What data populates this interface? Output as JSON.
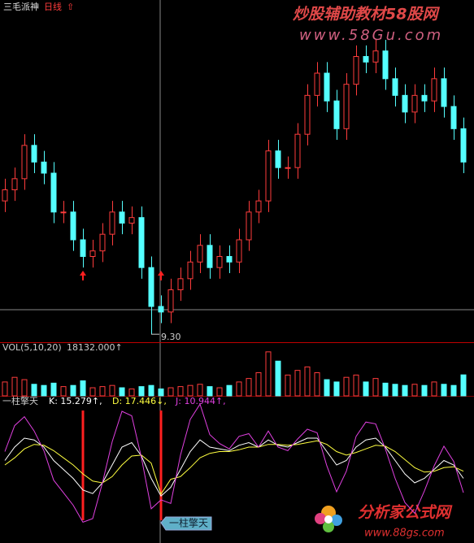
{
  "header": {
    "title": "三毛派神",
    "period": "日线",
    "arrow": "⇧"
  },
  "watermark": {
    "top": "炒股辅助教材58股网",
    "top_url": "www.58Gu.com",
    "bottom": "分析家公式网",
    "bottom_url": "www.88gs.com"
  },
  "chart_data": [
    {
      "type": "candlestick",
      "up_color": "#ff3c3c",
      "down_color": "#54ffff",
      "ylim": [
        9.2,
        15.2
      ],
      "low_label": "9.30",
      "low_index": 15,
      "open": [
        11.7,
        11.9,
        12.1,
        12.7,
        12.4,
        12.2,
        11.5,
        11.5,
        11.0,
        10.7,
        10.8,
        11.1,
        11.5,
        11.3,
        11.4,
        10.5,
        9.8,
        9.7,
        10.1,
        10.3,
        10.6,
        10.9,
        10.5,
        10.7,
        10.6,
        11.0,
        11.5,
        11.7,
        12.6,
        12.3,
        12.3,
        12.9,
        13.6,
        14.0,
        13.5,
        13.0,
        13.8,
        14.3,
        14.2,
        14.4,
        13.9,
        13.6,
        13.3,
        13.6,
        13.5,
        13.9,
        13.4,
        13.0
      ],
      "high": [
        12.1,
        12.3,
        12.9,
        12.9,
        12.6,
        12.4,
        11.7,
        11.7,
        11.2,
        11.0,
        11.3,
        11.7,
        11.7,
        11.6,
        11.6,
        10.7,
        10.0,
        10.3,
        10.5,
        10.8,
        11.1,
        11.1,
        10.9,
        10.9,
        11.2,
        11.7,
        11.9,
        12.8,
        12.8,
        12.5,
        13.1,
        13.8,
        14.2,
        14.2,
        13.7,
        14.0,
        14.5,
        14.5,
        14.6,
        14.6,
        14.1,
        13.8,
        13.8,
        13.8,
        14.1,
        14.1,
        13.6,
        13.2
      ],
      "low": [
        11.5,
        11.7,
        11.9,
        12.2,
        12.0,
        11.3,
        11.3,
        10.8,
        10.5,
        10.5,
        10.6,
        10.9,
        11.1,
        11.1,
        10.3,
        9.3,
        9.5,
        9.5,
        9.9,
        10.1,
        10.4,
        10.3,
        10.3,
        10.4,
        10.4,
        10.8,
        11.3,
        11.5,
        12.1,
        12.1,
        12.1,
        12.7,
        13.4,
        13.3,
        12.8,
        12.8,
        13.6,
        14.0,
        14.0,
        13.7,
        13.4,
        13.1,
        13.1,
        13.3,
        13.3,
        13.2,
        12.8,
        12.2
      ],
      "close": [
        11.9,
        12.1,
        12.7,
        12.4,
        12.2,
        11.5,
        11.5,
        11.0,
        10.7,
        10.8,
        11.1,
        11.5,
        11.3,
        11.4,
        10.5,
        9.8,
        9.7,
        10.1,
        10.3,
        10.6,
        10.9,
        10.5,
        10.7,
        10.6,
        11.0,
        11.5,
        11.7,
        12.6,
        12.3,
        12.3,
        12.9,
        13.6,
        14.0,
        13.5,
        13.0,
        13.8,
        14.3,
        14.2,
        14.4,
        13.9,
        13.6,
        13.3,
        13.6,
        13.5,
        13.9,
        13.4,
        13.0,
        12.4
      ]
    },
    {
      "type": "bar",
      "title": "VOL(5,10,20)",
      "readout": "18132.000↑",
      "ylim": [
        0,
        40000
      ],
      "values": [
        12000,
        16000,
        14000,
        10000,
        9000,
        11000,
        8000,
        9000,
        13000,
        7000,
        8000,
        9000,
        7000,
        6000,
        8000,
        9000,
        6000,
        7000,
        8000,
        9000,
        10000,
        8000,
        7000,
        9000,
        12000,
        15000,
        20000,
        38000,
        30000,
        18000,
        22000,
        25000,
        20000,
        14000,
        12000,
        16000,
        18000,
        12000,
        15000,
        11000,
        10000,
        9000,
        10000,
        9000,
        12000,
        10000,
        9000,
        18132
      ]
    },
    {
      "type": "line",
      "title": "一柱擎天",
      "ylim": [
        -30,
        120
      ],
      "signals": [
        8,
        16
      ],
      "signal_label": "一柱擎天",
      "signal_color": "#ff2020",
      "series": [
        {
          "name": "K: 15.279↑,",
          "color": "#ffffff",
          "values": [
            55,
            70,
            80,
            78,
            70,
            55,
            45,
            35,
            22,
            18,
            30,
            50,
            70,
            75,
            60,
            35,
            15.279,
            25,
            45,
            65,
            78,
            70,
            68,
            66,
            72,
            75,
            70,
            78,
            72,
            70,
            75,
            80,
            80,
            65,
            50,
            55,
            70,
            78,
            80,
            70,
            55,
            40,
            30,
            35,
            45,
            55,
            50,
            35
          ]
        },
        {
          "name": "D: 17.446↓,",
          "color": "#ffff40",
          "values": [
            50,
            58,
            68,
            73,
            72,
            66,
            58,
            50,
            40,
            32,
            30,
            37,
            50,
            60,
            61,
            52,
            17.446,
            34,
            37,
            47,
            58,
            63,
            65,
            65,
            67,
            70,
            70,
            73,
            73,
            72,
            73,
            75,
            77,
            73,
            65,
            61,
            64,
            68,
            72,
            71,
            65,
            56,
            47,
            42,
            43,
            47,
            48,
            43
          ]
        },
        {
          "name": "J: 10.944↑,",
          "color": "#e040e0",
          "values": [
            65,
            94,
            104,
            88,
            66,
            33,
            19,
            5,
            -14,
            -10,
            30,
            76,
            110,
            105,
            58,
            1,
            10.944,
            7,
            61,
            101,
            118,
            84,
            74,
            68,
            82,
            85,
            70,
            88,
            70,
            66,
            79,
            90,
            86,
            49,
            20,
            43,
            82,
            98,
            96,
            68,
            35,
            8,
            -4,
            21,
            49,
            71,
            54,
            19
          ]
        }
      ]
    }
  ]
}
